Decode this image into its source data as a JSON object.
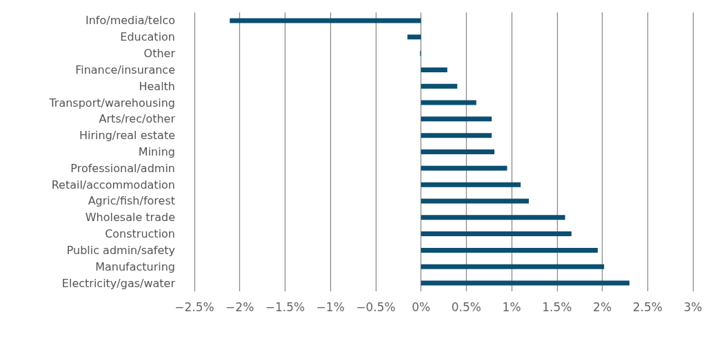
{
  "chart_data": {
    "type": "bar",
    "orientation": "horizontal",
    "categories": [
      "Info/media/telco",
      "Education",
      "Other",
      "Finance/insurance",
      "Health",
      "Transport/warehousing",
      "Arts/rec/other",
      "Hiring/real estate",
      "Mining",
      "Professional/admin",
      "Retail/accommodation",
      "Agric/fish/forest",
      "Wholesale trade",
      "Construction",
      "Public admin/safety",
      "Manufacturing",
      "Electricity/gas/water"
    ],
    "values": [
      -2.11,
      -0.15,
      -0.01,
      0.29,
      0.4,
      0.61,
      0.78,
      0.78,
      0.81,
      0.95,
      1.1,
      1.19,
      1.59,
      1.66,
      1.95,
      2.02,
      2.3
    ],
    "color": "#0b4f71",
    "xlim": [
      -2.5,
      3
    ],
    "xticks": [
      {
        "value": -2.5,
        "label": "−2.5%"
      },
      {
        "value": -2,
        "label": "−2%"
      },
      {
        "value": -1.5,
        "label": "−1.5%"
      },
      {
        "value": -1,
        "label": "−1%"
      },
      {
        "value": -0.5,
        "label": "−0.5%"
      },
      {
        "value": 0,
        "label": "0%"
      },
      {
        "value": 0.5,
        "label": "0.5%"
      },
      {
        "value": 1,
        "label": "1%"
      },
      {
        "value": 1.5,
        "label": "1.5%"
      },
      {
        "value": 2,
        "label": "2%"
      },
      {
        "value": 2.5,
        "label": "2.5%"
      },
      {
        "value": 3,
        "label": "3%"
      }
    ],
    "grid": "x"
  }
}
